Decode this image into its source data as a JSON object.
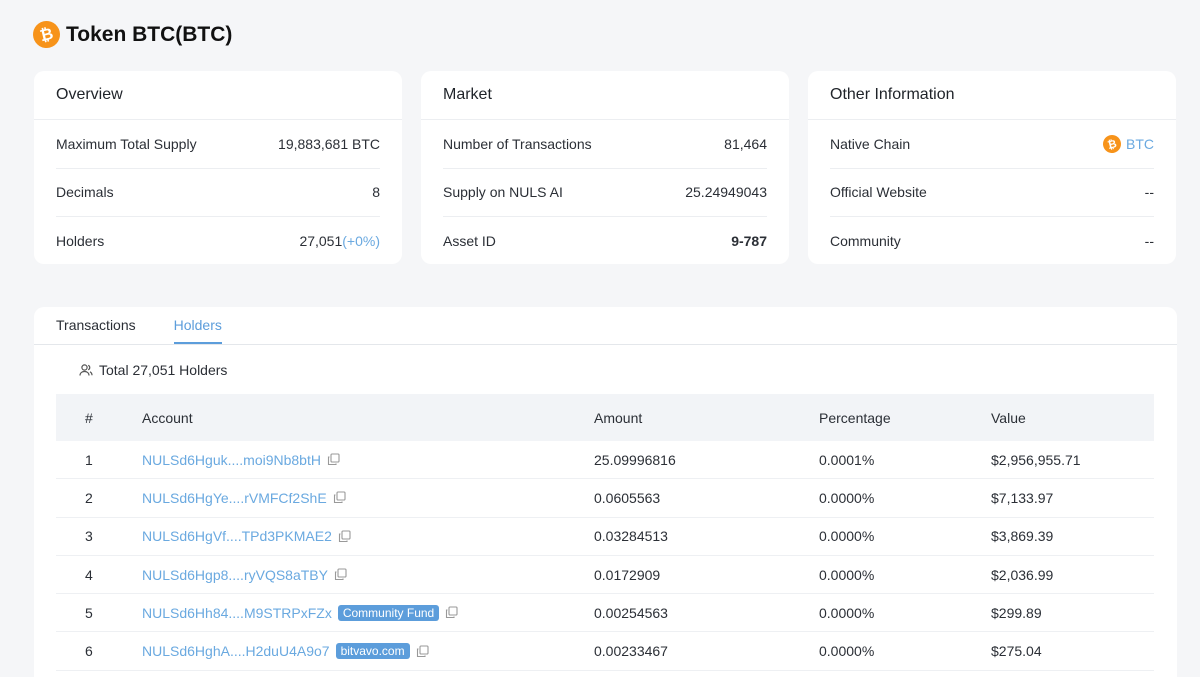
{
  "header": {
    "title": "Token BTC(BTC)",
    "logo_glyph": "₿",
    "logo_color": "#f7931a"
  },
  "overview": {
    "title": "Overview",
    "rows": [
      {
        "label": "Maximum Total Supply",
        "value": "19,883,681 BTC"
      },
      {
        "label": "Decimals",
        "value": "8"
      },
      {
        "label": "Holders",
        "value": "27,051",
        "suffix": "(+0%)"
      }
    ]
  },
  "market": {
    "title": "Market",
    "rows": [
      {
        "label": "Number of Transactions",
        "value": "81,464"
      },
      {
        "label": "Supply on NULS AI",
        "value": "25.24949043"
      },
      {
        "label": "Asset ID",
        "value": "9-787"
      }
    ]
  },
  "other": {
    "title": "Other Information",
    "rows": [
      {
        "label": "Native Chain",
        "value": "BTC"
      },
      {
        "label": "Official Website",
        "value": "--"
      },
      {
        "label": "Community",
        "value": "--"
      }
    ]
  },
  "tabs": [
    {
      "label": "Transactions",
      "active": false
    },
    {
      "label": "Holders",
      "active": true
    }
  ],
  "holders_total": "Total 27,051 Holders",
  "table": {
    "headers": [
      "#",
      "Account",
      "Amount",
      "Percentage",
      "Value"
    ],
    "rows": [
      {
        "idx": "1",
        "account": "NULSd6Hguk....moi9Nb8btH",
        "tag": "",
        "amount": "25.09996816",
        "pct": "0.0001%",
        "value": "$2,956,955.71"
      },
      {
        "idx": "2",
        "account": "NULSd6HgYe....rVMFCf2ShE",
        "tag": "",
        "amount": "0.0605563",
        "pct": "0.0000%",
        "value": "$7,133.97"
      },
      {
        "idx": "3",
        "account": "NULSd6HgVf....TPd3PKMAE2",
        "tag": "",
        "amount": "0.03284513",
        "pct": "0.0000%",
        "value": "$3,869.39"
      },
      {
        "idx": "4",
        "account": "NULSd6Hgp8....ryVQS8aTBY",
        "tag": "",
        "amount": "0.0172909",
        "pct": "0.0000%",
        "value": "$2,036.99"
      },
      {
        "idx": "5",
        "account": "NULSd6Hh84....M9STRPxFZx",
        "tag": "Community Fund",
        "amount": "0.00254563",
        "pct": "0.0000%",
        "value": "$299.89"
      },
      {
        "idx": "6",
        "account": "NULSd6HghA....H2duU4A9o7",
        "tag": "bitvavo.com",
        "amount": "0.00233467",
        "pct": "0.0000%",
        "value": "$275.04"
      }
    ]
  },
  "colors": {
    "link": "#6aa9e0",
    "accent": "#5c9ddb",
    "background": "#f5f6f8"
  }
}
